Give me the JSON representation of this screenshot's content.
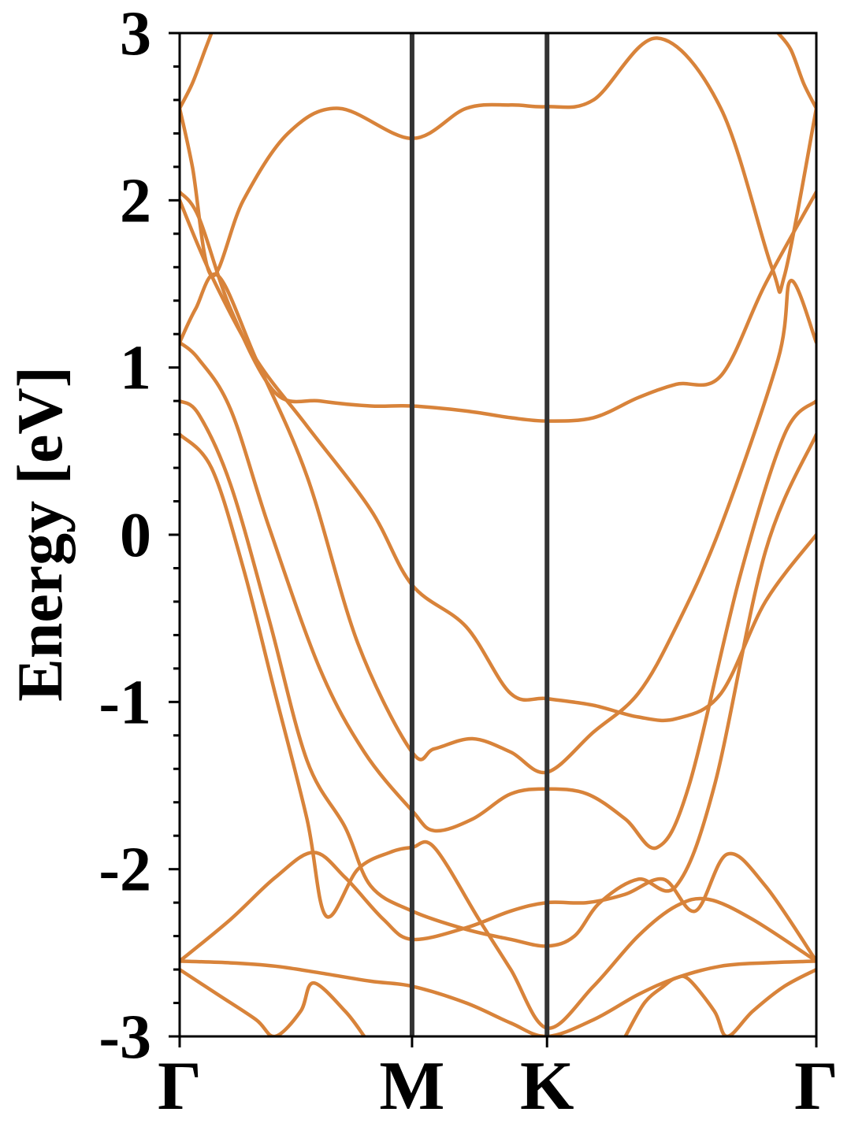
{
  "chart_data": {
    "type": "line",
    "title": "",
    "xlabel": "",
    "ylabel": "Energy [eV]",
    "ylim": [
      -3,
      3
    ],
    "yticks": [
      3,
      2,
      1,
      0,
      -1,
      -2,
      -3
    ],
    "ytick_labels": [
      "3",
      "2",
      "1",
      "0",
      "-1",
      "-2",
      "-3"
    ],
    "x_range": [
      0,
      1
    ],
    "high_symmetry_points": [
      {
        "label": "Γ",
        "x": 0.0
      },
      {
        "label": "M",
        "x": 0.365
      },
      {
        "label": "K",
        "x": 0.577
      },
      {
        "label": "Γ",
        "x": 1.0
      }
    ],
    "grid": false,
    "band_color": "#D8833A",
    "divider_color": "#333333",
    "bands": [
      {
        "x": [
          0,
          0.05,
          0.12,
          0.2,
          0.3,
          0.365,
          0.45,
          0.52,
          0.577,
          0.65,
          0.72,
          0.78,
          0.85,
          0.92,
          1.0
        ],
        "y": [
          2.0,
          1.55,
          1.05,
          0.65,
          0.15,
          -0.3,
          -0.55,
          -0.95,
          -0.98,
          -1.02,
          -1.09,
          -1.1,
          -0.95,
          -0.4,
          0.0
        ]
      },
      {
        "x": [
          0,
          0.03,
          0.08,
          0.15,
          0.22,
          0.3,
          0.365,
          0.45,
          0.52,
          0.577,
          0.65,
          0.72,
          0.78,
          0.85,
          0.92,
          1.0
        ],
        "y": [
          2.05,
          1.9,
          1.35,
          0.85,
          0.8,
          0.77,
          0.77,
          0.74,
          0.7,
          0.68,
          0.7,
          0.82,
          0.9,
          0.95,
          1.5,
          2.05
        ]
      },
      {
        "x": [
          0,
          0.02,
          0.05,
          0.1,
          0.17,
          0.25,
          0.365,
          0.45,
          0.52,
          0.577,
          0.65,
          0.75,
          0.85,
          0.93,
          0.95,
          1.0
        ],
        "y": [
          2.55,
          2.2,
          1.55,
          2.0,
          2.4,
          2.55,
          2.37,
          2.55,
          2.57,
          2.56,
          2.6,
          2.97,
          2.55,
          1.6,
          1.55,
          2.55
        ]
      },
      {
        "x": [
          0,
          0.025,
          0.06,
          0.12,
          0.2,
          0.28,
          0.365,
          0.4,
          0.46,
          0.52,
          0.577,
          0.65,
          0.72,
          0.78,
          0.85,
          0.94,
          0.96,
          1.0
        ],
        "y": [
          1.15,
          1.35,
          1.55,
          1.05,
          0.35,
          -0.65,
          -1.3,
          -1.28,
          -1.22,
          -1.3,
          -1.42,
          -1.18,
          -0.95,
          -0.55,
          0.05,
          1.05,
          1.52,
          1.15
        ]
      },
      {
        "x": [
          0,
          0.03,
          0.08,
          0.14,
          0.22,
          0.29,
          0.365,
          0.4,
          0.46,
          0.52,
          0.577,
          0.64,
          0.7,
          0.75,
          0.8,
          0.88,
          0.95,
          1.0
        ],
        "y": [
          1.15,
          1.05,
          0.75,
          0.05,
          -0.8,
          -1.3,
          -1.65,
          -1.77,
          -1.7,
          -1.55,
          -1.52,
          -1.55,
          -1.7,
          -1.87,
          -1.5,
          -0.25,
          0.6,
          0.8
        ]
      },
      {
        "x": [
          0,
          0.03,
          0.08,
          0.14,
          0.2,
          0.26,
          0.3,
          0.365,
          0.45,
          0.52,
          0.577,
          0.62,
          0.66,
          0.72,
          0.78,
          0.84,
          0.92,
          1.0
        ],
        "y": [
          0.8,
          0.72,
          0.3,
          -0.5,
          -1.35,
          -1.75,
          -2.1,
          -2.25,
          -2.36,
          -2.42,
          -2.46,
          -2.4,
          -2.2,
          -2.06,
          -2.1,
          -1.5,
          -0.1,
          0.6
        ]
      },
      {
        "x": [
          0,
          0.05,
          0.1,
          0.15,
          0.2,
          0.23,
          0.28,
          0.33,
          0.365,
          0.4,
          0.47,
          0.52,
          0.577,
          0.65,
          0.72,
          0.78,
          0.83,
          0.9,
          1.0
        ],
        "y": [
          0.6,
          0.4,
          -0.2,
          -0.95,
          -1.7,
          -2.28,
          -2.0,
          -1.9,
          -1.87,
          -1.87,
          -2.3,
          -2.6,
          -2.95,
          -2.7,
          -2.4,
          -2.22,
          -2.18,
          -2.3,
          -2.55
        ]
      },
      {
        "x": [
          0,
          0.08,
          0.15,
          0.21,
          0.26,
          0.32,
          0.365,
          0.45,
          0.52,
          0.577,
          0.64,
          0.7,
          0.76,
          0.81,
          0.86,
          0.92,
          1.0
        ],
        "y": [
          -2.55,
          -2.3,
          -2.05,
          -1.9,
          -2.05,
          -2.3,
          -2.42,
          -2.35,
          -2.25,
          -2.2,
          -2.2,
          -2.15,
          -2.06,
          -2.25,
          -1.91,
          -2.1,
          -2.55
        ]
      },
      {
        "x": [
          0,
          0.08,
          0.15,
          0.22,
          0.3,
          0.365,
          0.45,
          0.52,
          0.577,
          0.65,
          0.72,
          0.78,
          0.85,
          0.92,
          1.0
        ],
        "y": [
          -2.55,
          -2.56,
          -2.58,
          -2.62,
          -2.67,
          -2.7,
          -2.8,
          -2.92,
          -3.0,
          -2.9,
          -2.75,
          -2.65,
          -2.58,
          -2.56,
          -2.55
        ]
      },
      {
        "x": [
          0,
          0.06,
          0.12,
          0.15,
          0.19,
          0.21,
          0.26,
          0.29
        ],
        "y": [
          -2.6,
          -2.75,
          -2.9,
          -3.0,
          -2.85,
          -2.68,
          -2.85,
          -3.0
        ]
      },
      {
        "x": [
          0.7,
          0.73,
          0.76,
          0.78,
          0.8,
          0.84,
          0.86,
          0.9,
          0.95,
          1.0
        ],
        "y": [
          -3.0,
          -2.8,
          -2.7,
          -2.65,
          -2.66,
          -2.85,
          -3.0,
          -2.85,
          -2.7,
          -2.6
        ]
      },
      {
        "x": [
          0.94,
          0.96,
          0.98,
          1.0
        ],
        "y": [
          3.0,
          2.9,
          2.7,
          2.55
        ]
      },
      {
        "x": [
          0,
          0.02,
          0.04,
          0.05
        ],
        "y": [
          2.55,
          2.7,
          2.9,
          3.0
        ]
      }
    ]
  }
}
